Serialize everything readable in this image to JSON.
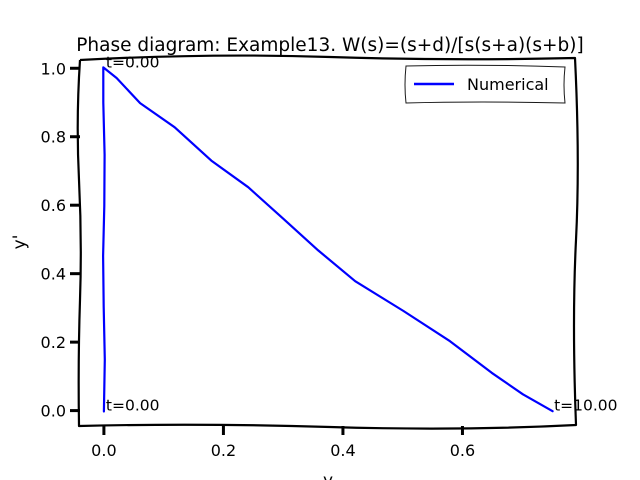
{
  "chart_data": {
    "type": "line",
    "title": "Phase diagram: Example13. W(s)=(s+d)/[s(s+a)(s+b)]",
    "xlabel": "y",
    "ylabel": "y'",
    "xlim": [
      -0.04,
      0.79
    ],
    "ylim": [
      -0.045,
      1.03
    ],
    "xticks": [
      0.0,
      0.2,
      0.4,
      0.6
    ],
    "xtick_labels": [
      "0.0",
      "0.2",
      "0.4",
      "0.6"
    ],
    "yticks": [
      0.0,
      0.2,
      0.4,
      0.6,
      0.8,
      1.0
    ],
    "ytick_labels": [
      "0.0",
      "0.2",
      "0.4",
      "0.6",
      "0.8",
      "1.0"
    ],
    "grid": false,
    "legend": {
      "position": "top-right",
      "entries": [
        "Numerical"
      ]
    },
    "series": [
      {
        "name": "Numerical",
        "color": "#0000ff",
        "points": [
          {
            "x": 0.0,
            "y": 0.0
          },
          {
            "x": 0.0,
            "y": 0.15
          },
          {
            "x": 0.0,
            "y": 0.3
          },
          {
            "x": 0.0,
            "y": 0.45
          },
          {
            "x": 0.0,
            "y": 0.6
          },
          {
            "x": 0.0,
            "y": 0.75
          },
          {
            "x": 0.0,
            "y": 0.9
          },
          {
            "x": 0.0,
            "y": 1.0
          },
          {
            "x": 0.02,
            "y": 0.97
          },
          {
            "x": 0.06,
            "y": 0.9
          },
          {
            "x": 0.12,
            "y": 0.83
          },
          {
            "x": 0.18,
            "y": 0.73
          },
          {
            "x": 0.24,
            "y": 0.65
          },
          {
            "x": 0.3,
            "y": 0.56
          },
          {
            "x": 0.36,
            "y": 0.47
          },
          {
            "x": 0.42,
            "y": 0.38
          },
          {
            "x": 0.5,
            "y": 0.29
          },
          {
            "x": 0.58,
            "y": 0.2
          },
          {
            "x": 0.65,
            "y": 0.11
          },
          {
            "x": 0.7,
            "y": 0.05
          },
          {
            "x": 0.75,
            "y": 0.0
          }
        ]
      }
    ],
    "annotations": [
      {
        "text": "t=0.00",
        "x": 0.0,
        "y": 1.0
      },
      {
        "text": "t=0.00",
        "x": 0.0,
        "y": 0.0
      },
      {
        "text": "t=10.00",
        "x": 0.75,
        "y": 0.0
      }
    ]
  }
}
